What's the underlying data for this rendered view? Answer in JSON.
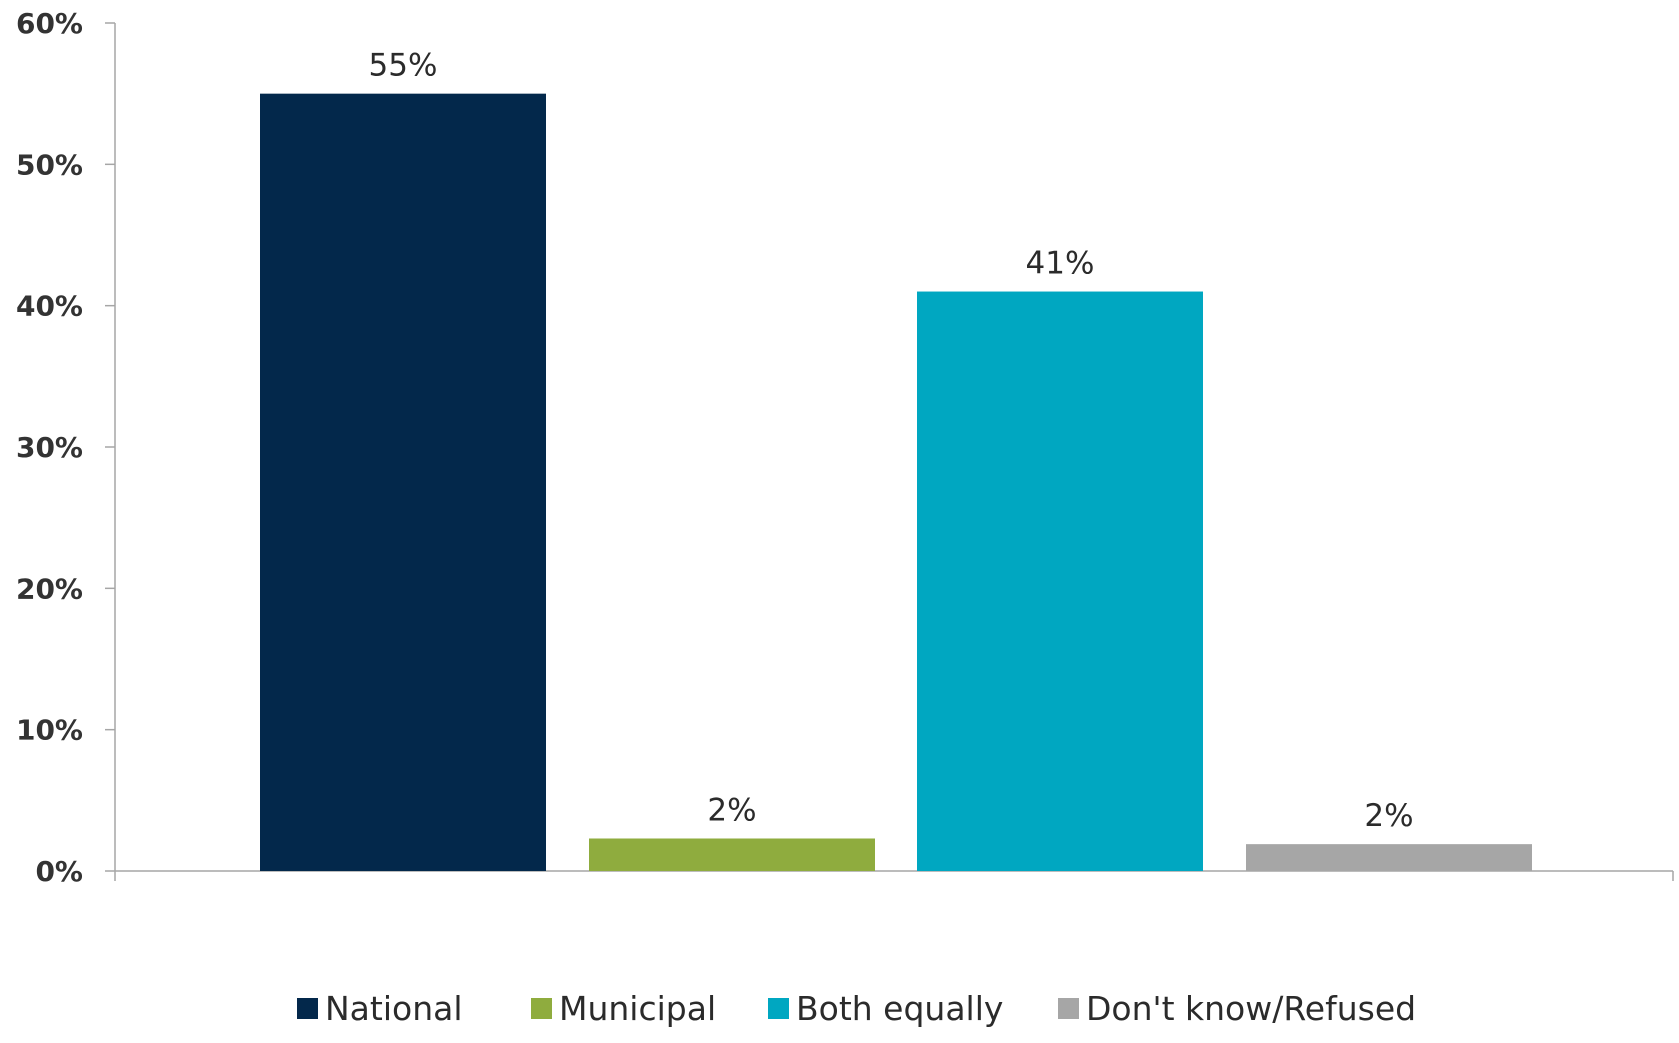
{
  "chart_data": {
    "type": "bar",
    "title": "",
    "xlabel": "",
    "ylabel": "",
    "ylim": [
      0,
      60
    ],
    "y_ticks": [
      0,
      10,
      20,
      30,
      40,
      50,
      60
    ],
    "y_tick_labels": [
      "0%",
      "10%",
      "20%",
      "30%",
      "40%",
      "50%",
      "60%"
    ],
    "grid": false,
    "legend_position": "bottom",
    "series": [
      {
        "name": "National",
        "value": 55,
        "data_label": "55%",
        "color": "#03284b"
      },
      {
        "name": "Municipal",
        "value": 2.3,
        "data_label": "2%",
        "color": "#8fac3e"
      },
      {
        "name": "Both equally",
        "value": 41,
        "data_label": "41%",
        "color": "#00a7c1"
      },
      {
        "name": "Don't know/Refused",
        "value": 1.9,
        "data_label": "2%",
        "color": "#a6a6a6"
      }
    ]
  }
}
